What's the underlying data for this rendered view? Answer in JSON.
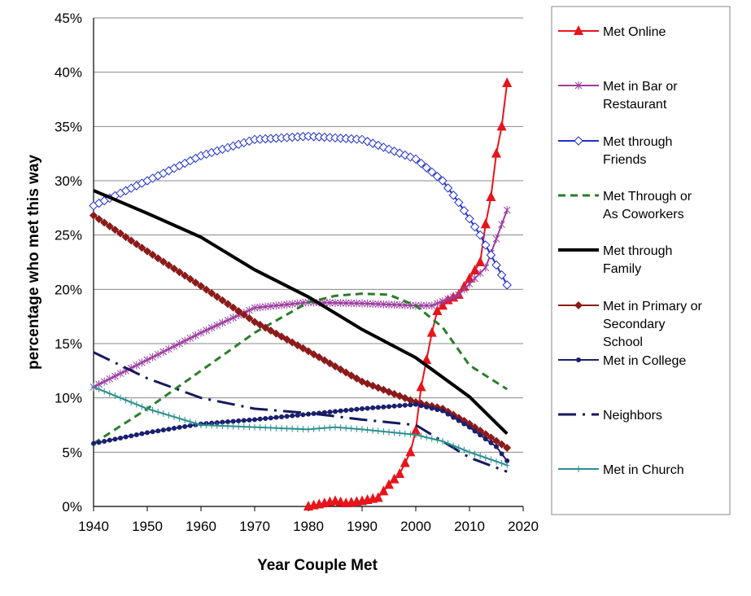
{
  "chart_data": {
    "type": "line",
    "title": "",
    "xlabel": "Year Couple Met",
    "ylabel": "percentage who met this way",
    "xlim": [
      1940,
      2020
    ],
    "ylim": [
      0,
      45
    ],
    "xticks": [
      "1940",
      "1950",
      "1960",
      "1970",
      "1980",
      "1990",
      "2000",
      "2010",
      "2020"
    ],
    "yticks": [
      "0%",
      "5%",
      "10%",
      "15%",
      "20%",
      "25%",
      "30%",
      "35%",
      "40%",
      "45%"
    ],
    "grid": "horizontal",
    "legend": "right",
    "series": [
      {
        "name": "Met Online",
        "color": "#e8141b",
        "marker": "triangle",
        "dash": "solid",
        "x": [
          1980,
          1982,
          1985,
          1987,
          1990,
          1993,
          1995,
          1997,
          1999,
          2000,
          2001,
          2002,
          2003,
          2004,
          2006,
          2008,
          2010,
          2012,
          2013,
          2014,
          2015,
          2016,
          2017
        ],
        "y": [
          0,
          0.2,
          0.5,
          0.3,
          0.5,
          0.8,
          2,
          3,
          5,
          7,
          11,
          13.5,
          16,
          18,
          19,
          19.5,
          21,
          22.5,
          26,
          28.5,
          32.5,
          35,
          39
        ]
      },
      {
        "name": "Met in Bar or Restaurant",
        "color": "#9b3da0",
        "marker": "asterisk",
        "dash": "solid",
        "x": [
          1940,
          1950,
          1960,
          1970,
          1980,
          1990,
          2000,
          2003,
          2008,
          2013,
          2017
        ],
        "y": [
          11,
          13.5,
          16,
          18.3,
          18.8,
          18.7,
          18.5,
          18.5,
          19.5,
          22,
          27.3
        ]
      },
      {
        "name": "Met through Friends",
        "color": "#1f2fd0",
        "marker": "diamond-open",
        "dash": "solid",
        "x": [
          1940,
          1950,
          1960,
          1970,
          1980,
          1990,
          2000,
          2005,
          2008,
          2012,
          2017
        ],
        "y": [
          27.7,
          30,
          32.3,
          33.8,
          34.1,
          33.8,
          32,
          30,
          28,
          25,
          20.4
        ]
      },
      {
        "name": "Met Through or As Coworkers",
        "color": "#2a7d2a",
        "marker": "none",
        "dash": "dashed",
        "x": [
          1940,
          1950,
          1960,
          1970,
          1980,
          1985,
          1990,
          1995,
          2000,
          2005,
          2010,
          2017
        ],
        "y": [
          5.8,
          9,
          12.5,
          16,
          18.8,
          19.4,
          19.6,
          19.5,
          18.5,
          16.5,
          13,
          10.8
        ]
      },
      {
        "name": "Met through Family",
        "color": "#000000",
        "marker": "none",
        "dash": "solid",
        "x": [
          1940,
          1950,
          1960,
          1970,
          1980,
          1990,
          2000,
          2010,
          2017
        ],
        "y": [
          29.1,
          27,
          24.8,
          21.8,
          19.3,
          16.3,
          13.7,
          10.1,
          6.7
        ]
      },
      {
        "name": "Met in Primary or Secondary School",
        "color": "#8b1a1a",
        "marker": "diamond",
        "dash": "solid",
        "x": [
          1940,
          1950,
          1960,
          1970,
          1980,
          1990,
          2000,
          2005,
          2010,
          2017
        ],
        "y": [
          26.8,
          23.5,
          20.3,
          17,
          14.3,
          11.5,
          9.6,
          9,
          7.6,
          5.4
        ]
      },
      {
        "name": "Met in College",
        "color": "#1a1f6e",
        "marker": "circle",
        "dash": "solid",
        "x": [
          1940,
          1950,
          1960,
          1970,
          1980,
          1990,
          2000,
          2005,
          2010,
          2015,
          2017
        ],
        "y": [
          5.8,
          6.8,
          7.6,
          8,
          8.5,
          9,
          9.4,
          8.8,
          7.3,
          5.5,
          4.2
        ]
      },
      {
        "name": "Neighbors",
        "color": "#141a5e",
        "marker": "none",
        "dash": "dashdot",
        "x": [
          1940,
          1950,
          1960,
          1970,
          1980,
          1990,
          2000,
          2005,
          2010,
          2017
        ],
        "y": [
          14.2,
          11.8,
          10,
          9,
          8.6,
          8,
          7.5,
          6,
          4.5,
          3.2
        ]
      },
      {
        "name": "Met in Church",
        "color": "#2a8f8f",
        "marker": "plus",
        "dash": "solid",
        "x": [
          1940,
          1950,
          1960,
          1970,
          1980,
          1985,
          1990,
          2000,
          2005,
          2010,
          2017
        ],
        "y": [
          11,
          9,
          7.5,
          7.3,
          7.1,
          7.3,
          7.1,
          6.6,
          6,
          5,
          3.8
        ]
      }
    ],
    "legend_labels": [
      [
        "Met Online"
      ],
      [
        "Met in Bar or",
        "Restaurant"
      ],
      [
        "Met through",
        "Friends"
      ],
      [
        "Met Through or",
        "As Coworkers"
      ],
      [
        "Met through",
        "Family"
      ],
      [
        "Met in Primary or",
        "Secondary",
        "School"
      ],
      [
        "Met in College"
      ],
      [
        "Neighbors"
      ],
      [
        "Met in Church"
      ]
    ]
  }
}
